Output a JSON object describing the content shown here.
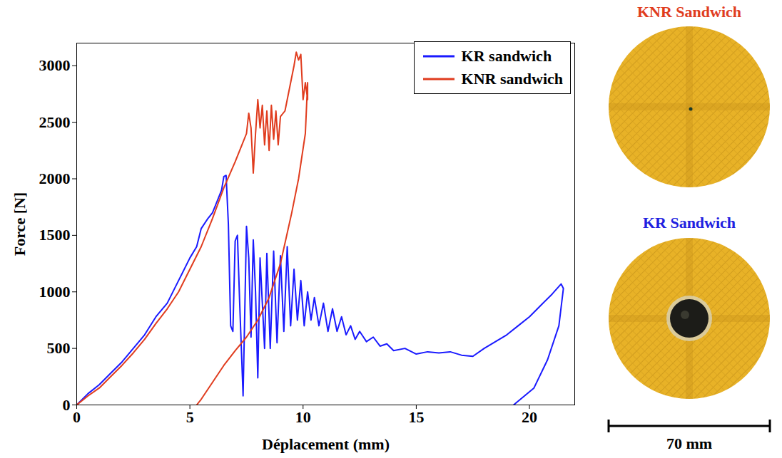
{
  "chart_data": {
    "type": "line",
    "x_label": "Déplacement (mm)",
    "y_label": "Force [N]",
    "xlim": [
      0,
      22
    ],
    "ylim": [
      0,
      3200
    ],
    "xticks": [
      0,
      5,
      10,
      15,
      20
    ],
    "yticks": [
      0,
      500,
      1000,
      1500,
      2000,
      2500,
      3000
    ],
    "legend": "top-right",
    "series": [
      {
        "name": "KR sandwich",
        "color": "#1a1aff",
        "x": [
          0,
          0.5,
          1,
          1.5,
          2,
          2.5,
          3,
          3.5,
          4,
          4.5,
          5,
          5.3,
          5.5,
          5.8,
          6,
          6.2,
          6.4,
          6.5,
          6.6,
          6.7,
          6.8,
          6.9,
          7.0,
          7.1,
          7.2,
          7.35,
          7.5,
          7.6,
          7.7,
          7.8,
          7.9,
          8.0,
          8.1,
          8.2,
          8.3,
          8.4,
          8.55,
          8.7,
          8.85,
          9.0,
          9.15,
          9.3,
          9.45,
          9.6,
          9.75,
          9.9,
          10.05,
          10.2,
          10.35,
          10.5,
          10.7,
          10.9,
          11.1,
          11.3,
          11.5,
          11.7,
          11.9,
          12.1,
          12.3,
          12.5,
          12.8,
          13.1,
          13.4,
          13.7,
          14,
          14.5,
          15,
          15.5,
          16,
          16.5,
          17,
          17.5,
          18,
          18.5,
          19,
          19.5,
          20,
          20.5,
          21,
          21.4,
          21.5,
          21.3,
          20.8,
          20.2,
          19.3
        ],
        "values": [
          0,
          100,
          180,
          280,
          380,
          500,
          620,
          780,
          900,
          1100,
          1300,
          1400,
          1560,
          1650,
          1700,
          1800,
          1900,
          2020,
          2030,
          1600,
          700,
          650,
          1450,
          1500,
          900,
          80,
          1580,
          1300,
          600,
          1460,
          1000,
          240,
          1300,
          900,
          500,
          1340,
          500,
          1360,
          550,
          1320,
          650,
          1400,
          700,
          1200,
          750,
          1100,
          700,
          1000,
          750,
          950,
          700,
          900,
          650,
          850,
          650,
          780,
          620,
          700,
          580,
          650,
          560,
          600,
          520,
          540,
          480,
          500,
          450,
          470,
          460,
          470,
          440,
          430,
          500,
          560,
          620,
          700,
          780,
          880,
          980,
          1070,
          1030,
          700,
          400,
          150,
          0
        ]
      },
      {
        "name": "KNR sandwich",
        "color": "#e03c1e",
        "x": [
          0,
          0.5,
          1,
          1.5,
          2,
          2.5,
          3,
          3.5,
          4,
          4.5,
          5,
          5.5,
          6,
          6.5,
          7,
          7.3,
          7.5,
          7.6,
          7.7,
          7.8,
          7.9,
          8.0,
          8.1,
          8.2,
          8.3,
          8.4,
          8.5,
          8.6,
          8.7,
          8.8,
          8.9,
          9.0,
          9.2,
          9.4,
          9.6,
          9.7,
          9.8,
          9.9,
          10.0,
          10.1,
          10.2,
          10.2,
          10.1,
          9.8,
          9.5,
          9.0,
          8.5,
          8,
          7.5,
          7,
          6.5,
          6,
          5.5,
          5.3
        ],
        "values": [
          0,
          80,
          150,
          250,
          350,
          460,
          580,
          720,
          850,
          1000,
          1200,
          1400,
          1650,
          1920,
          2150,
          2300,
          2400,
          2580,
          2450,
          2050,
          2400,
          2700,
          2450,
          2650,
          2300,
          2600,
          2250,
          2650,
          2350,
          2600,
          2300,
          2550,
          2600,
          2800,
          3000,
          3120,
          3050,
          3100,
          2700,
          2850,
          2700,
          2850,
          2400,
          2000,
          1700,
          1250,
          950,
          750,
          600,
          480,
          350,
          200,
          50,
          0
        ]
      }
    ]
  },
  "images": [
    {
      "title": "KNR Sandwich",
      "color": "#e03c1e"
    },
    {
      "title": "KR Sandwich",
      "color": "#2020e0"
    }
  ],
  "scale_bar": "70 mm"
}
